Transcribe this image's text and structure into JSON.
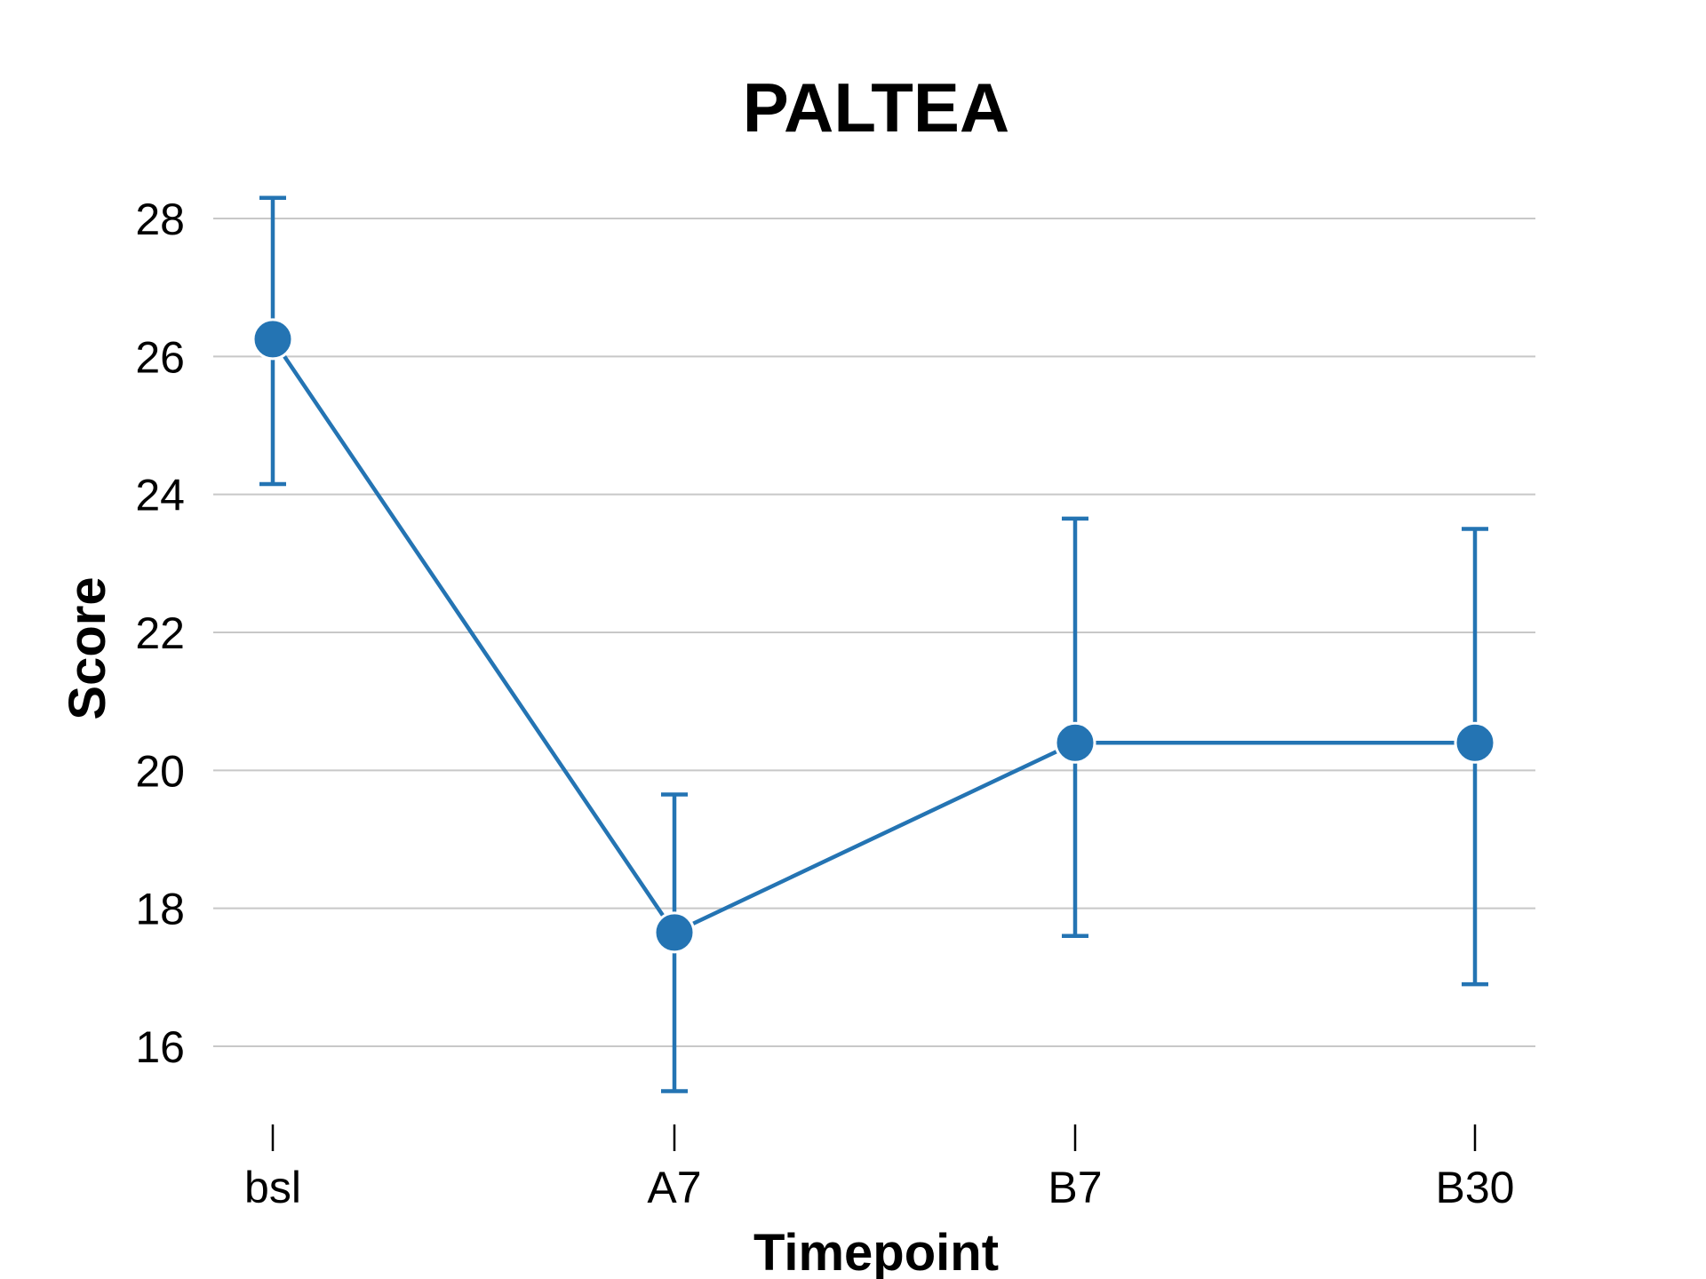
{
  "chart_data": {
    "type": "line",
    "title": "PALTEA",
    "xlabel": "Timepoint",
    "ylabel": "Score",
    "categories": [
      "bsl",
      "A7",
      "B7",
      "B30"
    ],
    "series": [
      {
        "values": [
          26.25,
          17.65,
          20.4,
          20.4
        ],
        "error_low": [
          24.15,
          15.35,
          17.6,
          16.9
        ],
        "error_high": [
          28.3,
          19.65,
          23.65,
          23.5
        ]
      }
    ],
    "yticks": [
      16,
      18,
      20,
      22,
      24,
      26,
      28
    ],
    "ylim": [
      15.2,
      28.9
    ],
    "grid": true,
    "color": "#2474b3"
  }
}
